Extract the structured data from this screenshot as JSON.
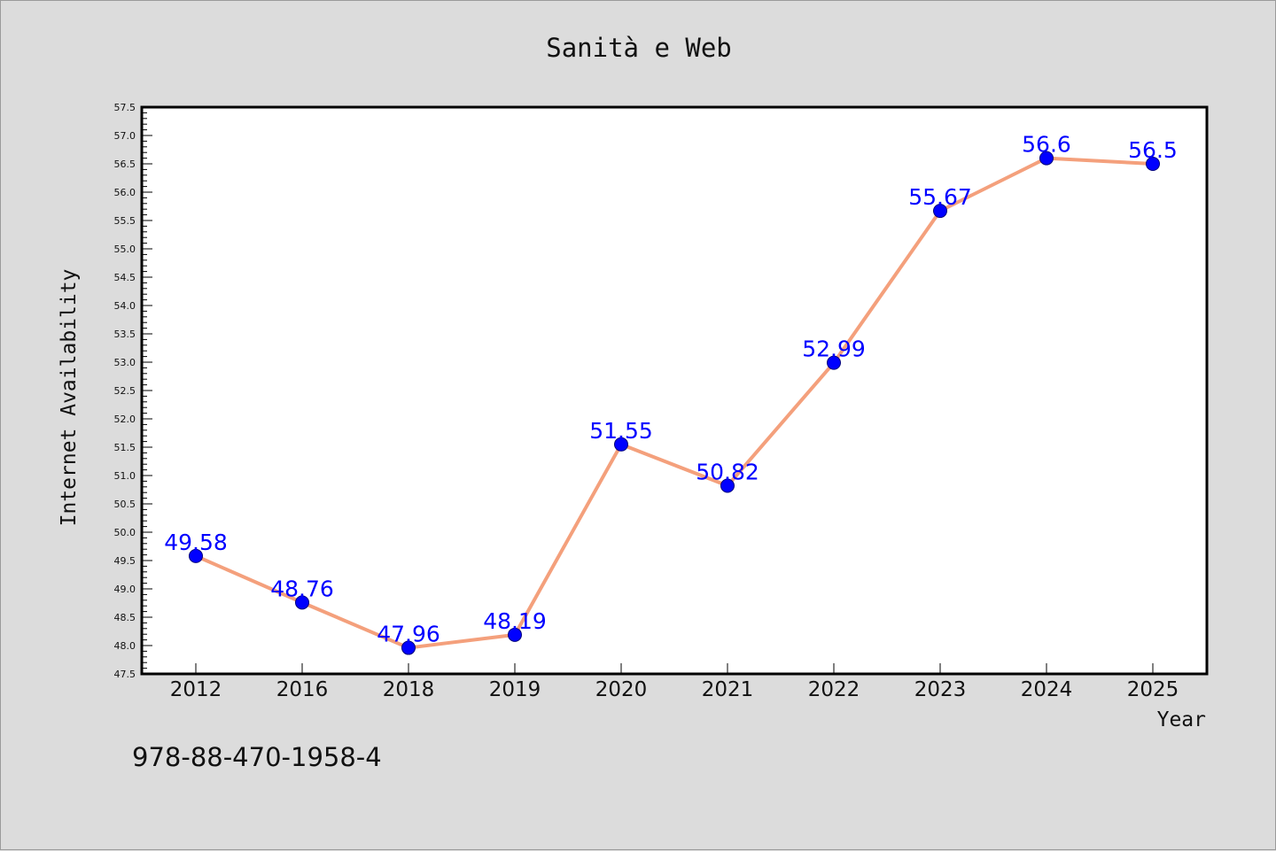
{
  "chart_data": {
    "type": "line",
    "title": "Sanità e Web",
    "xlabel": "Year",
    "ylabel": "Internet Availability",
    "categories": [
      "2012",
      "2016",
      "2018",
      "2019",
      "2020",
      "2021",
      "2022",
      "2023",
      "2024",
      "2025"
    ],
    "series": [
      {
        "values": [
          49.58,
          48.76,
          47.96,
          48.19,
          51.55,
          50.82,
          52.99,
          55.67,
          56.6,
          56.5
        ],
        "data_labels": [
          "49.58",
          "48.76",
          "47.96",
          "48.19",
          "51.55",
          "50.82",
          "52.99",
          "55.67",
          "56.6",
          "56.5"
        ],
        "line_color": "#f4a07c",
        "marker_color": "#0000ff"
      }
    ],
    "ylim": [
      47.5,
      57.5
    ],
    "ytick_labels": [
      "47.5",
      "48.0",
      "48.5",
      "49.0",
      "49.5",
      "50.0",
      "50.5",
      "51.0",
      "51.5",
      "52.0",
      "52.5",
      "53.0",
      "53.5",
      "54.0",
      "54.5",
      "55.0",
      "55.5",
      "56.0",
      "56.5",
      "57.0",
      "57.5"
    ],
    "grid": false,
    "label_color": "#0000ff"
  },
  "footer_text": "978-88-470-1958-4"
}
